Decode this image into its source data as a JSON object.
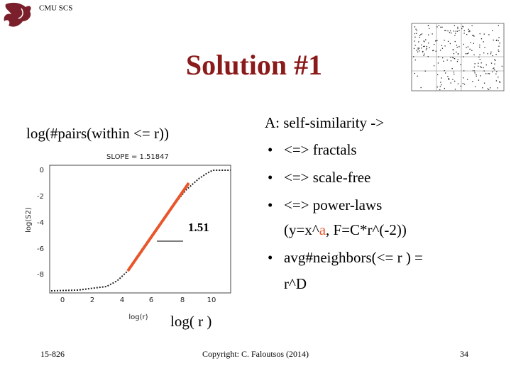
{
  "header": {
    "org": "CMU SCS",
    "title": "Solution #1"
  },
  "plot": {
    "outer_y_label": "log(#pairs(within <= r))",
    "slope": "SLOPE = 1.51847",
    "y_axis_label": "log(S2)",
    "x_axis_label": "log(r)",
    "yticks": [
      "0",
      "-2",
      "-4",
      "-6",
      "-8"
    ],
    "xticks": [
      "0",
      "2",
      "4",
      "6",
      "8",
      "10"
    ],
    "annotation": "1.51",
    "outer_x_label": "log( r )"
  },
  "bullets": {
    "lead": "A: self-similarity ->",
    "items": [
      "<=> fractals",
      "<=> scale-free",
      "<=> power-laws"
    ],
    "power_law_detail": [
      "(y=x^",
      "a",
      ", F=C*r^(-2))"
    ],
    "neighbors": [
      "avg#neighbors(<= r ) =",
      "r^D"
    ]
  },
  "footer": {
    "course": "15-826",
    "copyright": "Copyright: C. Faloutsos (2014)",
    "page": "34"
  }
}
